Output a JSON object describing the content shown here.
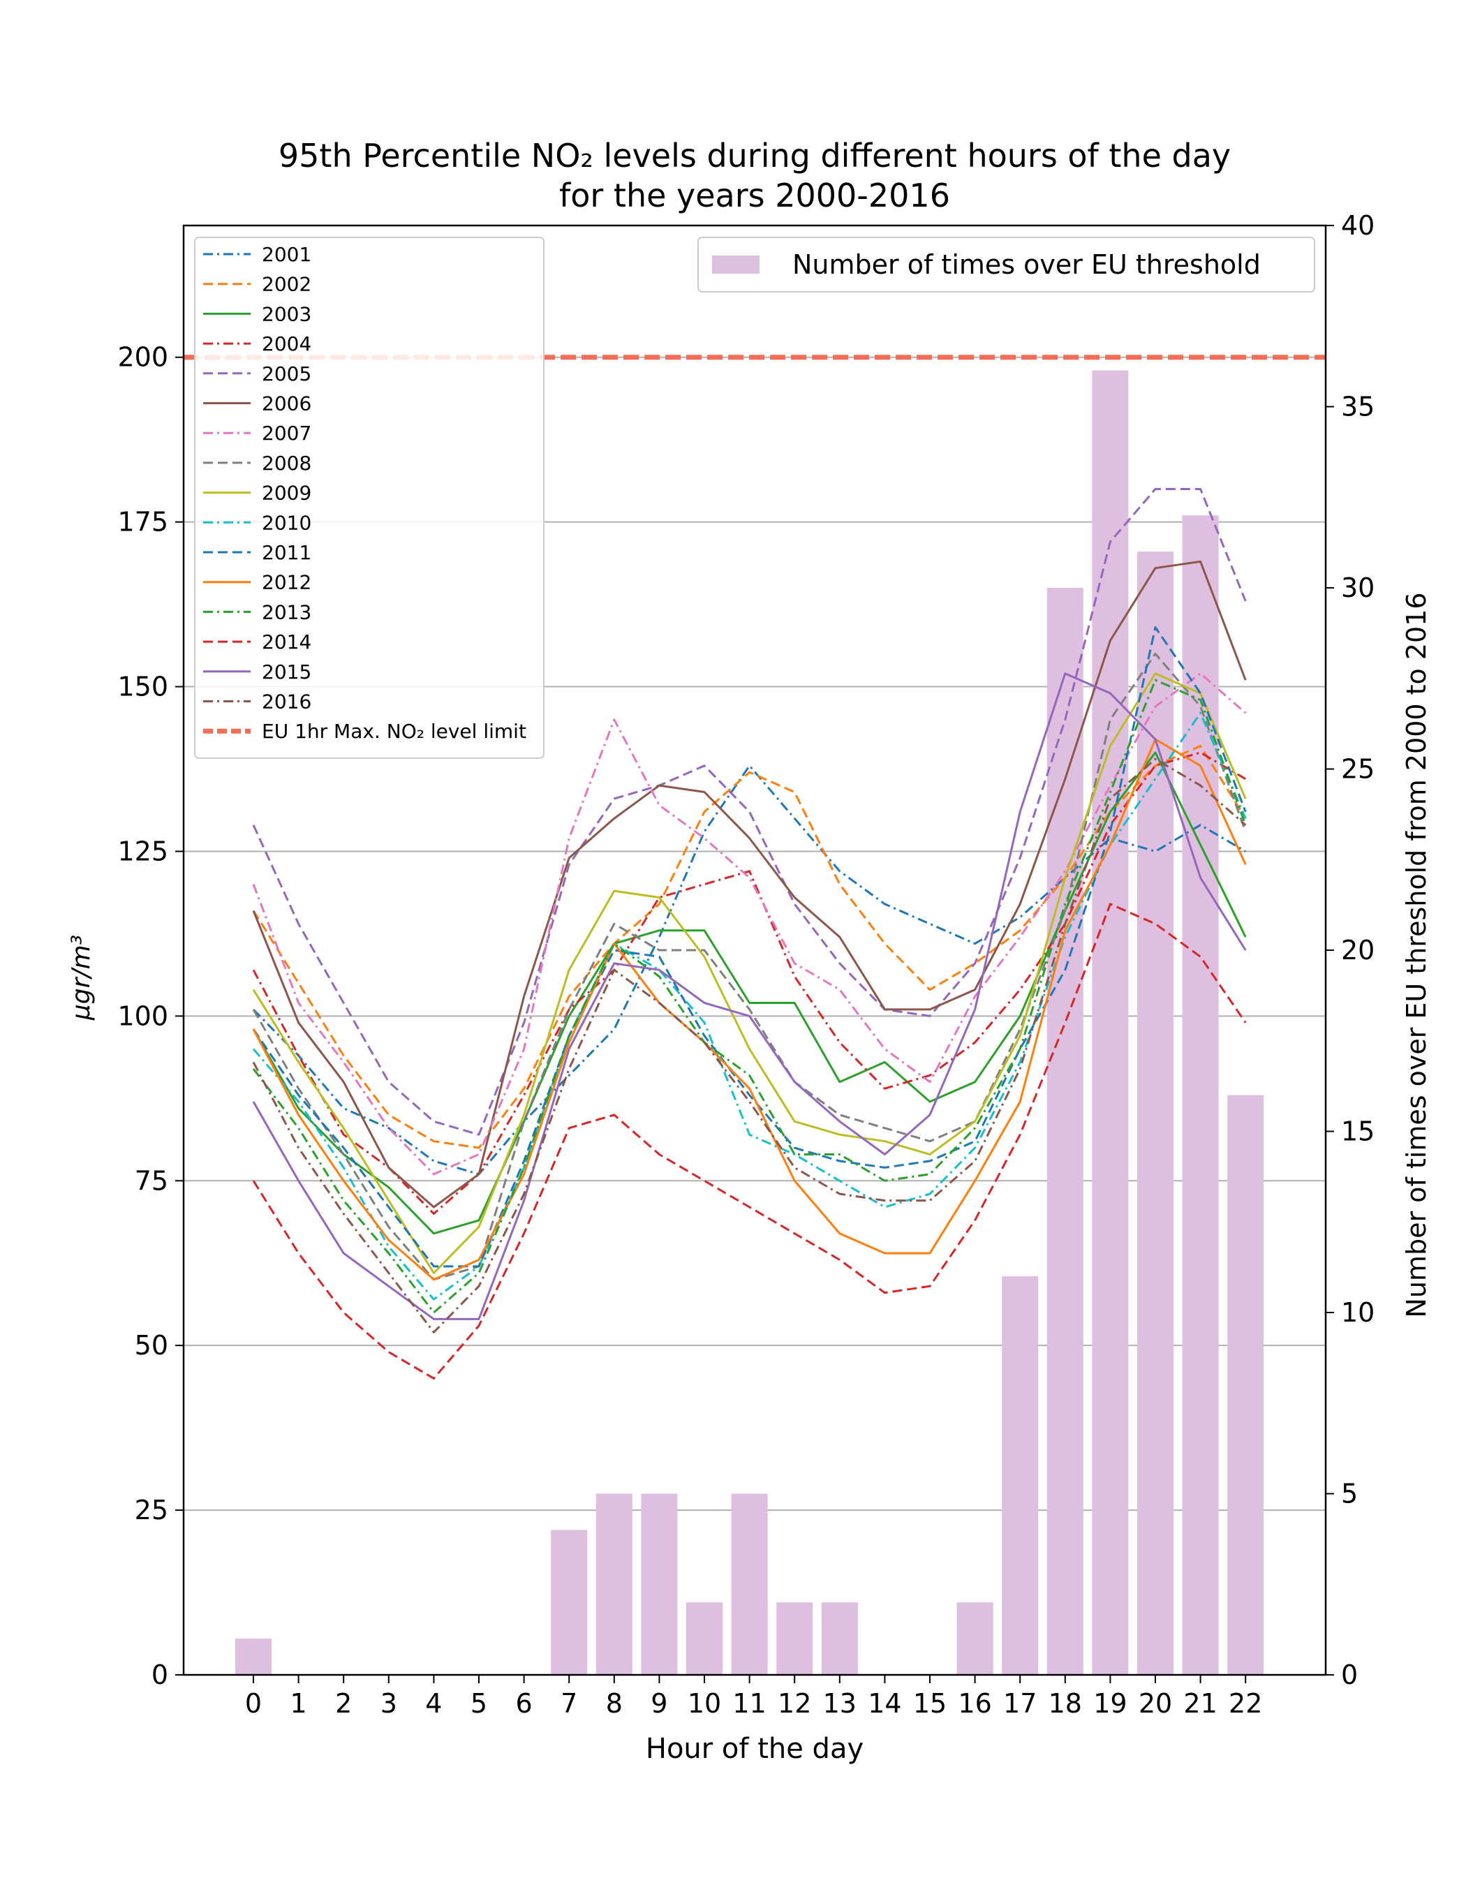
{
  "chart_data": {
    "type": "line",
    "title": "95th Percentile NO₂ levels during different hours of the day",
    "subtitle": "for the years 2000-2016",
    "xlabel": "Hour of the day",
    "ylabel": "µgr/m³",
    "y2label": "Number of times over EU threshold from 2000 to 2016",
    "x": [
      0,
      1,
      2,
      3,
      4,
      5,
      6,
      7,
      8,
      9,
      10,
      11,
      12,
      13,
      14,
      15,
      16,
      17,
      18,
      19,
      20,
      21,
      22
    ],
    "ylim": [
      0,
      220
    ],
    "y2lim": [
      0,
      40
    ],
    "yticks": [
      0,
      25,
      50,
      75,
      100,
      125,
      150,
      175,
      200
    ],
    "y2ticks": [
      0,
      5,
      10,
      15,
      20,
      25,
      30,
      35,
      40
    ],
    "grid": "horizontal",
    "legend_lines_position": "upper-left",
    "legend_bars_position": "upper-right",
    "threshold": {
      "label": "EU 1hr Max. NO₂ level limit",
      "value": 200,
      "color": "#f46d54"
    },
    "bars": {
      "label": "Number of times over EU threshold",
      "color": "#dfbfe0",
      "values": [
        1,
        0,
        0,
        0,
        0,
        0,
        0,
        4,
        5,
        5,
        2,
        5,
        2,
        2,
        0,
        0,
        2,
        11,
        30,
        36,
        31,
        32,
        16
      ]
    },
    "series": [
      {
        "name": "2001",
        "color": "#1f77b4",
        "dash": "dashdot",
        "values": [
          101,
          94,
          86,
          83,
          78,
          76,
          84,
          91,
          98,
          112,
          128,
          138,
          130,
          122,
          117,
          114,
          111,
          115,
          121,
          127,
          125,
          129,
          125
        ]
      },
      {
        "name": "2002",
        "color": "#ff7f0e",
        "dash": "dashed",
        "values": [
          116,
          105,
          94,
          85,
          81,
          80,
          89,
          103,
          111,
          117,
          131,
          137,
          134,
          120,
          111,
          104,
          108,
          113,
          121,
          131,
          138,
          141,
          130
        ]
      },
      {
        "name": "2003",
        "color": "#2ca02c",
        "dash": "solid",
        "values": [
          98,
          86,
          79,
          74,
          67,
          69,
          84,
          100,
          111,
          113,
          113,
          102,
          102,
          90,
          93,
          87,
          90,
          100,
          116,
          131,
          140,
          126,
          112
        ]
      },
      {
        "name": "2004",
        "color": "#d62728",
        "dash": "dashdot",
        "values": [
          107,
          94,
          82,
          77,
          70,
          76,
          88,
          101,
          107,
          118,
          120,
          122,
          106,
          96,
          89,
          91,
          96,
          104,
          114,
          129,
          138,
          140,
          136
        ]
      },
      {
        "name": "2005",
        "color": "#9467bd",
        "dash": "dashed",
        "values": [
          129,
          114,
          102,
          90,
          84,
          82,
          99,
          123,
          133,
          135,
          138,
          131,
          117,
          108,
          101,
          100,
          108,
          124,
          145,
          172,
          180,
          180,
          163
        ]
      },
      {
        "name": "2006",
        "color": "#8c564b",
        "dash": "solid",
        "values": [
          116,
          99,
          90,
          77,
          71,
          76,
          103,
          124,
          130,
          135,
          134,
          127,
          118,
          112,
          101,
          101,
          104,
          117,
          136,
          157,
          168,
          169,
          151
        ]
      },
      {
        "name": "2007",
        "color": "#e377c2",
        "dash": "dashdot",
        "values": [
          120,
          102,
          93,
          83,
          76,
          79,
          95,
          127,
          145,
          132,
          127,
          121,
          108,
          104,
          95,
          90,
          103,
          112,
          122,
          135,
          147,
          152,
          146
        ]
      },
      {
        "name": "2008",
        "color": "#7f7f7f",
        "dash": "dashed",
        "values": [
          101,
          89,
          79,
          68,
          60,
          62,
          84,
          101,
          114,
          110,
          110,
          101,
          90,
          85,
          83,
          81,
          84,
          98,
          116,
          145,
          155,
          147,
          128
        ]
      },
      {
        "name": "2009",
        "color": "#bcbd22",
        "dash": "solid",
        "values": [
          104,
          93,
          83,
          72,
          61,
          68,
          85,
          107,
          119,
          118,
          109,
          95,
          84,
          82,
          81,
          79,
          84,
          97,
          121,
          141,
          152,
          149,
          133
        ]
      },
      {
        "name": "2010",
        "color": "#17becf",
        "dash": "dashdot",
        "values": [
          95,
          87,
          77,
          65,
          57,
          62,
          77,
          97,
          111,
          107,
          99,
          82,
          79,
          75,
          71,
          73,
          80,
          93,
          112,
          126,
          136,
          146,
          130
        ]
      },
      {
        "name": "2011",
        "color": "#1f77b4",
        "dash": "dashed",
        "values": [
          98,
          88,
          80,
          71,
          62,
          62,
          78,
          97,
          110,
          109,
          97,
          88,
          80,
          78,
          77,
          78,
          81,
          95,
          107,
          128,
          159,
          149,
          131
        ]
      },
      {
        "name": "2012",
        "color": "#ff7f0e",
        "dash": "solid",
        "values": [
          98,
          85,
          75,
          66,
          60,
          63,
          76,
          96,
          111,
          102,
          96,
          89,
          75,
          67,
          64,
          64,
          75,
          87,
          113,
          126,
          142,
          138,
          123
        ]
      },
      {
        "name": "2013",
        "color": "#2ca02c",
        "dash": "dashdot",
        "values": [
          92,
          83,
          72,
          64,
          55,
          61,
          77,
          97,
          111,
          106,
          96,
          91,
          79,
          79,
          75,
          76,
          83,
          95,
          117,
          134,
          151,
          148,
          129
        ]
      },
      {
        "name": "2014",
        "color": "#d62728",
        "dash": "dashed",
        "values": [
          75,
          64,
          55,
          49,
          45,
          53,
          67,
          83,
          85,
          79,
          75,
          71,
          67,
          63,
          58,
          59,
          69,
          82,
          99,
          117,
          114,
          109,
          99
        ]
      },
      {
        "name": "2015",
        "color": "#9467bd",
        "dash": "solid",
        "values": [
          87,
          75,
          64,
          59,
          54,
          54,
          72,
          95,
          108,
          107,
          102,
          100,
          90,
          84,
          79,
          85,
          101,
          131,
          152,
          149,
          142,
          121,
          110
        ]
      },
      {
        "name": "2016",
        "color": "#8c564b",
        "dash": "dashdot",
        "values": [
          93,
          80,
          70,
          61,
          52,
          59,
          73,
          92,
          107,
          102,
          96,
          87,
          77,
          73,
          72,
          72,
          78,
          92,
          114,
          133,
          139,
          135,
          129
        ]
      }
    ]
  }
}
